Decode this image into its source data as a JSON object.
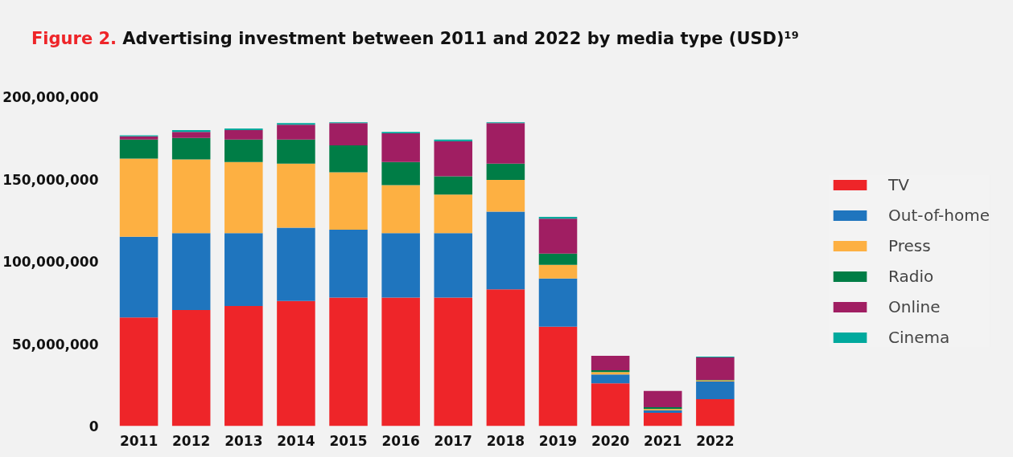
{
  "chart_data": {
    "type": "bar",
    "stacked": true,
    "title": "Figure 2. Advertising investment between 2011 and 2022 by media type (USD)¹⁹",
    "categories": [
      "2011",
      "2012",
      "2013",
      "2014",
      "2015",
      "2016",
      "2017",
      "2018",
      "2019",
      "2020",
      "2021",
      "2022"
    ],
    "series": [
      {
        "name": "TV",
        "color": "#ee2529",
        "values": [
          66000000,
          70500000,
          72900000,
          76000000,
          78100000,
          78100000,
          78100000,
          83000000,
          60400000,
          26000000,
          8000000,
          16300000
        ]
      },
      {
        "name": "Out-of-home",
        "color": "#1f75be",
        "values": [
          49000000,
          46700000,
          44300000,
          44500000,
          41200000,
          39100000,
          39100000,
          47200000,
          29200000,
          5300000,
          1500000,
          10800000
        ]
      },
      {
        "name": "Press",
        "color": "#fdb042",
        "values": [
          47500000,
          44800000,
          43200000,
          38900000,
          34900000,
          29200000,
          23400000,
          19300000,
          8300000,
          1500000,
          900000,
          700000
        ]
      },
      {
        "name": "Radio",
        "color": "#007d46",
        "values": [
          11500000,
          13000000,
          13600000,
          14600000,
          16300000,
          14000000,
          11100000,
          9900000,
          6900000,
          1100000,
          1100000,
          300000
        ]
      },
      {
        "name": "Online",
        "color": "#a01e62",
        "values": [
          2000000,
          3600000,
          5700000,
          9000000,
          13500000,
          17400000,
          21200000,
          24600000,
          21200000,
          8800000,
          9900000,
          13600000
        ]
      },
      {
        "name": "Cinema",
        "color": "#00a99d",
        "values": [
          600000,
          1100000,
          1000000,
          1000000,
          500000,
          800000,
          1100000,
          500000,
          1100000,
          0,
          0,
          500000
        ]
      }
    ],
    "ylim": [
      0,
      200000000
    ],
    "yticks": [
      {
        "value": 0,
        "label": "0"
      },
      {
        "value": 50000000,
        "label": "50,000,000"
      },
      {
        "value": 100000000,
        "label": "100,000,000"
      },
      {
        "value": 150000000,
        "label": "150,000,000"
      },
      {
        "value": 200000000,
        "label": "200,000,000"
      }
    ],
    "legend": "right",
    "grid": false
  }
}
